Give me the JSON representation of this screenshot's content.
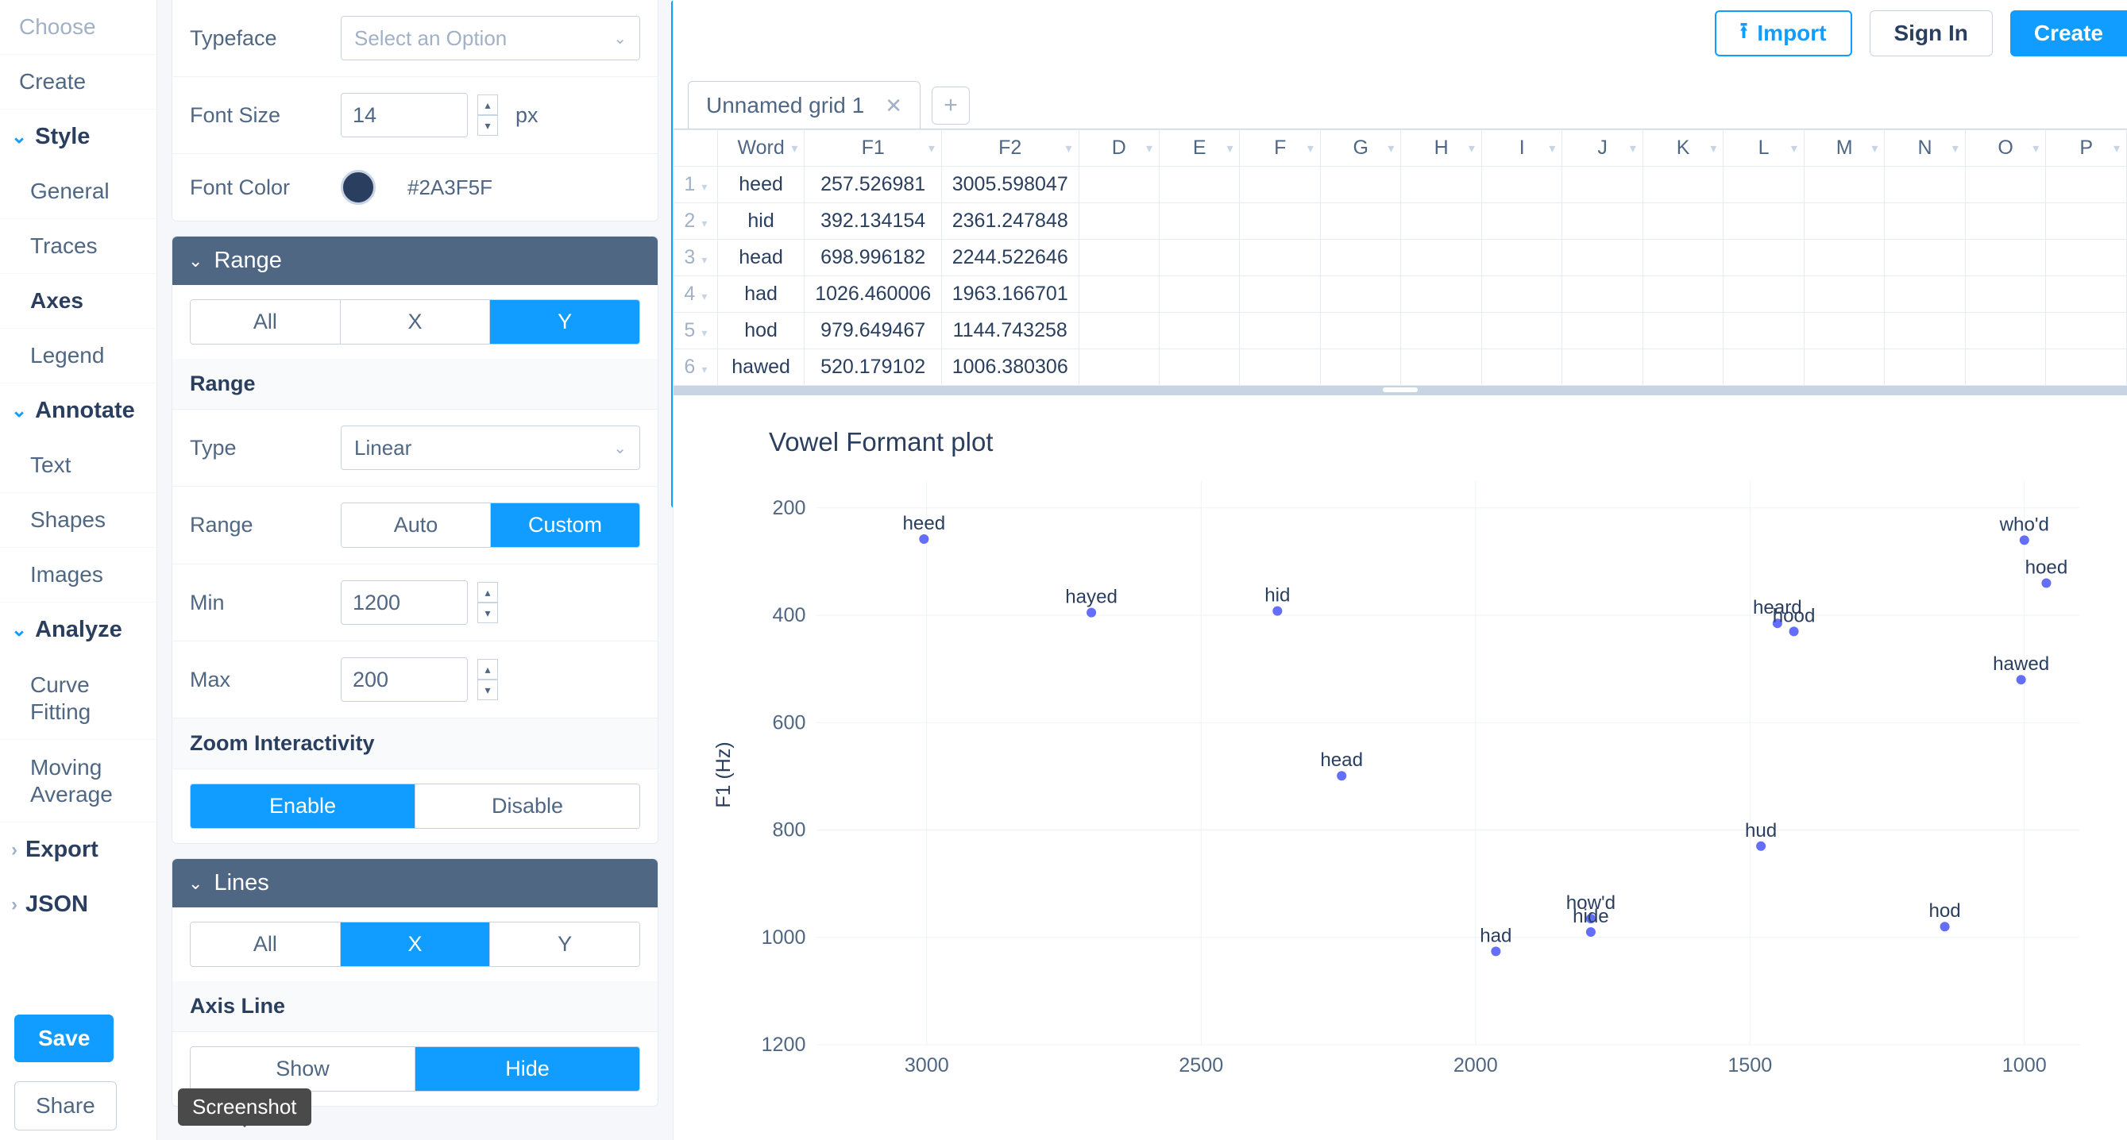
{
  "leftnav": {
    "choose": "Choose",
    "create": "Create",
    "style": "Style",
    "general": "General",
    "traces": "Traces",
    "axes": "Axes",
    "legend": "Legend",
    "annotate": "Annotate",
    "text": "Text",
    "shapes": "Shapes",
    "images": "Images",
    "analyze": "Analyze",
    "curvefitting": "Curve Fitting",
    "movingavg": "Moving Average",
    "export": "Export",
    "json": "JSON",
    "save": "Save",
    "share": "Share"
  },
  "mid": {
    "typeface_label": "Typeface",
    "typeface_placeholder": "Select an Option",
    "fontsize_label": "Font Size",
    "fontsize_value": "14",
    "fontsize_unit": "px",
    "fontcolor_label": "Font Color",
    "fontcolor_swatch": "#2A3F5F",
    "fontcolor_hex": "#2A3F5F",
    "range_hdr": "Range",
    "seg_all": "All",
    "seg_x": "X",
    "seg_y": "Y",
    "range_sub": "Range",
    "type_label": "Type",
    "type_value": "Linear",
    "range_label": "Range",
    "range_auto": "Auto",
    "range_custom": "Custom",
    "min_label": "Min",
    "min_value": "1200",
    "max_label": "Max",
    "max_value": "200",
    "zoom_sub": "Zoom Interactivity",
    "zoom_enable": "Enable",
    "zoom_disable": "Disable",
    "lines_hdr": "Lines",
    "axisline_sub": "Axis Line",
    "show": "Show",
    "hide": "Hide"
  },
  "top": {
    "import": "Import",
    "signin": "Sign In",
    "create": "Create"
  },
  "tabs": {
    "name": "Unnamed grid 1"
  },
  "grid": {
    "headers": [
      "Word",
      "F1",
      "F2",
      "D",
      "E",
      "F",
      "G",
      "H",
      "I",
      "J",
      "K",
      "L",
      "M",
      "N",
      "O",
      "P"
    ],
    "rows": [
      {
        "n": "1",
        "w": "heed",
        "f1": "257.526981",
        "f2": "3005.598047"
      },
      {
        "n": "2",
        "w": "hid",
        "f1": "392.134154",
        "f2": "2361.247848"
      },
      {
        "n": "3",
        "w": "head",
        "f1": "698.996182",
        "f2": "2244.522646"
      },
      {
        "n": "4",
        "w": "had",
        "f1": "1026.460006",
        "f2": "1963.166701"
      },
      {
        "n": "5",
        "w": "hod",
        "f1": "979.649467",
        "f2": "1144.743258"
      },
      {
        "n": "6",
        "w": "hawed",
        "f1": "520.179102",
        "f2": "1006.380306"
      }
    ]
  },
  "chart": {
    "title": "Vowel Formant plot",
    "type": "scatter",
    "ylabel": "F1 (Hz)",
    "xlim_left": 3200,
    "xlim_right": 900,
    "ylim_top": 150,
    "ylim_bottom": 1200,
    "xticks": [
      3000,
      2500,
      2000,
      1500,
      1000
    ],
    "yticks": [
      200,
      400,
      600,
      800,
      1000,
      1200
    ],
    "background_color": "#ffffff",
    "grid_color": "#eef2f8",
    "tick_fontsize": 25,
    "marker_color": "#636efa",
    "marker_size": 6,
    "label_fontsize": 24,
    "label_color": "#2a3f5f",
    "points": [
      {
        "label": "heed",
        "f2": 3005,
        "f1": 258
      },
      {
        "label": "hayed",
        "f2": 2700,
        "f1": 395
      },
      {
        "label": "hid",
        "f2": 2361,
        "f1": 392
      },
      {
        "label": "head",
        "f2": 2244,
        "f1": 699
      },
      {
        "label": "had",
        "f2": 1963,
        "f1": 1026
      },
      {
        "label": "how'd",
        "f2": 1790,
        "f1": 965
      },
      {
        "label": "hide",
        "f2": 1790,
        "f1": 990
      },
      {
        "label": "hud",
        "f2": 1480,
        "f1": 830
      },
      {
        "label": "heard",
        "f2": 1450,
        "f1": 415
      },
      {
        "label": "hood",
        "f2": 1420,
        "f1": 430
      },
      {
        "label": "hod",
        "f2": 1145,
        "f1": 980
      },
      {
        "label": "hawed",
        "f2": 1006,
        "f1": 520
      },
      {
        "label": "who'd",
        "f2": 1000,
        "f1": 260
      },
      {
        "label": "hoed",
        "f2": 960,
        "f1": 340
      }
    ]
  },
  "tooltip": "Screenshot"
}
